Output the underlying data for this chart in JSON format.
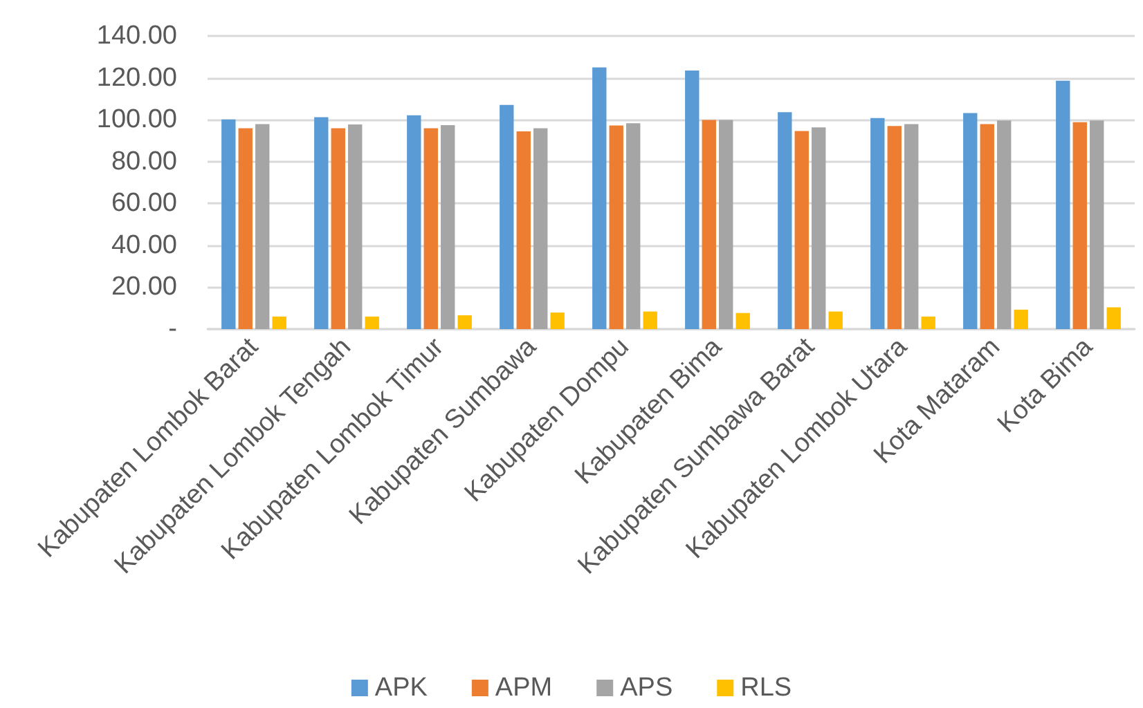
{
  "chart_data": {
    "type": "bar",
    "categories": [
      "Kabupaten Lombok Barat",
      "Kabupaten Lombok Tengah",
      "Kabupaten Lombok Timur",
      "Kabupaten Sumbawa",
      "Kabupaten Dompu",
      "Kabupaten Bima",
      "Kabupaten Sumbawa Barat",
      "Kabupaten Lombok Utara",
      "Kota Mataram",
      "Kota Bima"
    ],
    "series": [
      {
        "name": "APK",
        "color": "#5b9bd5",
        "values": [
          100.1,
          101.2,
          102.1,
          107.1,
          125.0,
          123.5,
          103.6,
          100.8,
          103.2,
          118.6
        ]
      },
      {
        "name": "APM",
        "color": "#ed7d31",
        "values": [
          95.9,
          95.9,
          95.9,
          94.4,
          97.2,
          99.9,
          94.6,
          97.0,
          97.9,
          98.8
        ]
      },
      {
        "name": "APS",
        "color": "#a5a5a5",
        "values": [
          97.9,
          97.7,
          97.4,
          95.9,
          98.3,
          99.9,
          96.3,
          97.9,
          99.6,
          99.6
        ]
      },
      {
        "name": "RLS",
        "color": "#ffc000",
        "values": [
          6.0,
          6.0,
          6.6,
          7.9,
          8.4,
          7.7,
          8.4,
          6.0,
          9.3,
          10.4
        ]
      }
    ],
    "ylim": [
      0,
      140
    ],
    "yticks": [
      {
        "value": 0,
        "label": "-"
      },
      {
        "value": 20,
        "label": "20.00"
      },
      {
        "value": 40,
        "label": "40.00"
      },
      {
        "value": 60,
        "label": "60.00"
      },
      {
        "value": 80,
        "label": "80.00"
      },
      {
        "value": 100,
        "label": "100.00"
      },
      {
        "value": 120,
        "label": "120.00"
      },
      {
        "value": 140,
        "label": "140.00"
      }
    ],
    "grid": "y",
    "legend": "bottom"
  }
}
